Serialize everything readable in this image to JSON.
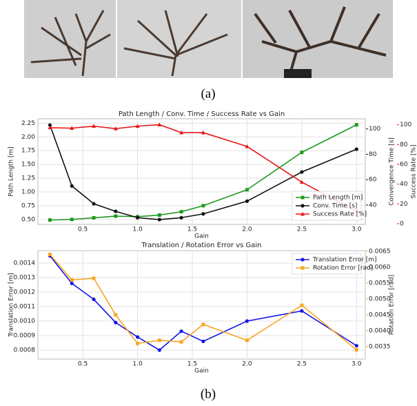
{
  "captions": [
    "(a)",
    "(b)"
  ],
  "chart_data": [
    {
      "type": "line",
      "title": "Path Length / Conv. Time / Success Rate vs Gain",
      "xlabel": "Gain",
      "ylabel": "Path Length [m]",
      "y2label": "Convergence Time [s]",
      "y3label": "Success Rate [%]",
      "x": [
        0.2,
        0.4,
        0.6,
        0.8,
        1.0,
        1.2,
        1.4,
        1.6,
        2.0,
        2.5,
        3.0
      ],
      "xlim": [
        0.09,
        3.08
      ],
      "xticks": [
        0.5,
        {
          "value": 1.0,
          "label": "1.0"
        },
        1.5,
        {
          "value": 2.0,
          "label": "2.0"
        },
        2.5,
        {
          "value": 3.0,
          "label": "3.0"
        }
      ],
      "ylim": [
        0.41,
        2.33
      ],
      "yticks": [
        {
          "value": 0.5,
          "label": "0.50"
        },
        0.75,
        {
          "value": 1.0,
          "label": "1.00"
        },
        1.25,
        {
          "value": 1.5,
          "label": "1.50"
        },
        1.75,
        {
          "value": 2.0,
          "label": "2.00"
        },
        2.25
      ],
      "y2lim": [
        24.7,
        108
      ],
      "y2ticks": [
        40,
        60,
        80,
        100
      ],
      "y3lim": [
        -0.7,
        106
      ],
      "y3ticks": [
        0,
        20,
        40,
        60,
        80,
        100
      ],
      "grid": true,
      "legend": "lower right",
      "series": [
        {
          "name": "Path Length [m]",
          "color": "#1f9a1f",
          "marker": "square",
          "axis": "y",
          "values": [
            0.49,
            0.5,
            0.53,
            0.56,
            0.55,
            0.58,
            0.64,
            0.75,
            1.04,
            1.72,
            2.22
          ]
        },
        {
          "name": "Conv. Time [s]",
          "color": "#111111",
          "marker": "circle",
          "axis": "y2",
          "values": [
            103,
            55,
            41,
            35,
            30,
            28.5,
            30,
            33,
            43,
            66,
            84
          ]
        },
        {
          "name": "Success Rate [%]",
          "color": "#e81515",
          "marker": "triangle",
          "axis": "y3",
          "values": [
            97,
            96.5,
            98.5,
            96,
            98.5,
            100,
            92,
            92,
            78,
            42,
            13
          ]
        }
      ]
    },
    {
      "type": "line",
      "title": "Translation / Rotation Error vs Gain",
      "xlabel": "Gain",
      "ylabel": "Translation Error [m]",
      "y2label": "Rotation Error [rad]",
      "x": [
        0.2,
        0.4,
        0.6,
        0.8,
        1.0,
        1.2,
        1.4,
        1.6,
        2.0,
        2.5,
        3.0
      ],
      "xlim": [
        0.09,
        3.08
      ],
      "xticks": [
        0.5,
        {
          "value": 1.0,
          "label": "1.0"
        },
        1.5,
        {
          "value": 2.0,
          "label": "2.0"
        },
        2.5,
        {
          "value": 3.0,
          "label": "3.0"
        }
      ],
      "ylim": [
        0.000738,
        0.001486
      ],
      "yticks": [
        0.0008,
        0.0009,
        {
          "value": 0.001,
          "label": "0.0010"
        },
        0.0011,
        0.0012,
        0.0013,
        0.0014
      ],
      "y2lim": [
        0.00311,
        0.00652
      ],
      "y2ticks": [
        0.0035,
        {
          "value": 0.004,
          "label": "0.0040"
        },
        0.0045,
        {
          "value": 0.005,
          "label": "0.0050"
        },
        0.0055,
        {
          "value": 0.006,
          "label": "0.0060"
        },
        0.0065
      ],
      "grid": true,
      "legend": "upper right",
      "series": [
        {
          "name": "Translation Error [m]",
          "color": "#1515e6",
          "marker": "circle",
          "axis": "y",
          "values": [
            0.00145,
            0.00126,
            0.00115,
            0.00099,
            0.00089,
            0.0008,
            0.00093,
            0.00086,
            0.001,
            0.00107,
            0.00083
          ]
        },
        {
          "name": "Rotation Error [rad]",
          "color": "#f5a623",
          "marker": "square",
          "axis": "y2",
          "values": [
            0.0064,
            0.0056,
            0.00565,
            0.0045,
            0.0036,
            0.0037,
            0.00365,
            0.0042,
            0.0037,
            0.0048,
            0.0034
          ]
        }
      ]
    }
  ]
}
